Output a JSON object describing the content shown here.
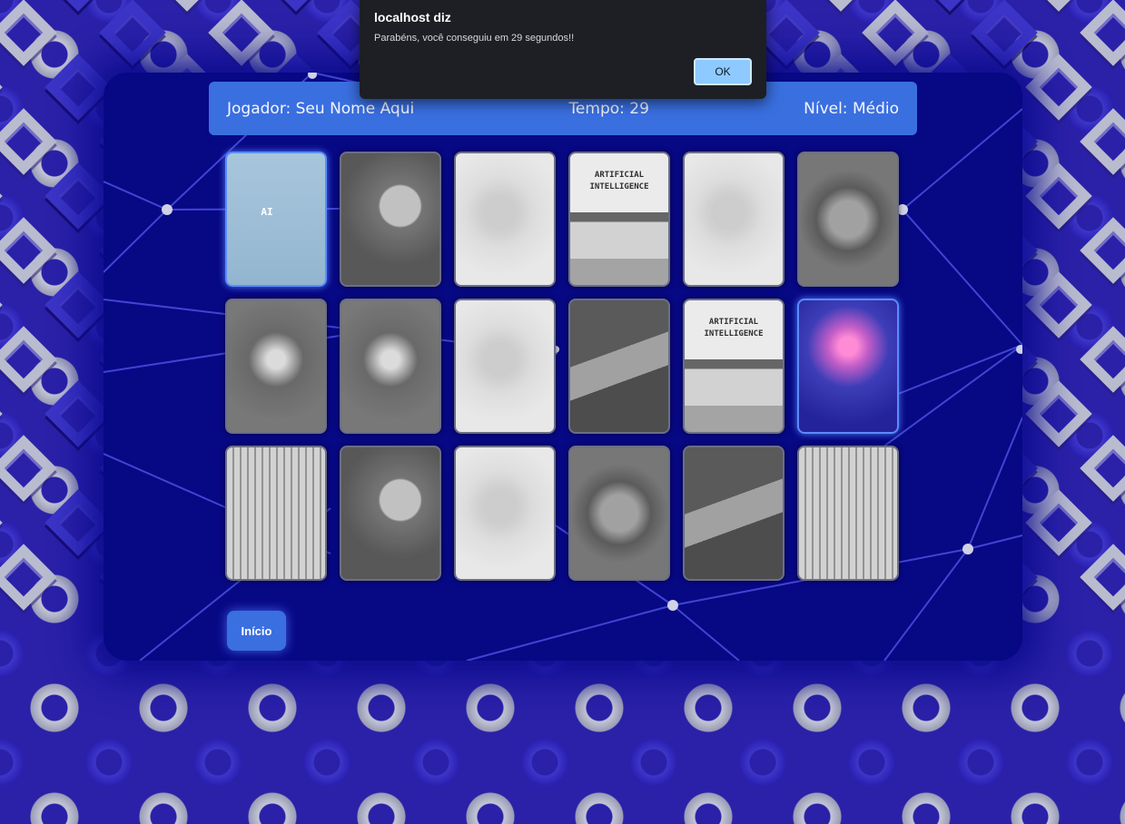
{
  "dialog": {
    "title": "localhost diz",
    "message": "Parabéns, você conseguiu em 29 segundos!!",
    "ok_label": "OK"
  },
  "header": {
    "player": "Jogador: Seu Nome Aqui",
    "time": "Tempo: 29",
    "level": "Nível: Médio"
  },
  "cards": [
    {
      "image": "ai-robot-hand-icon",
      "state": "revealed",
      "label": "AI"
    },
    {
      "image": "robot-head-icon",
      "state": "matched",
      "label": ""
    },
    {
      "image": "robot-hand-light-icon",
      "state": "matched",
      "label": ""
    },
    {
      "image": "ai-monitor-icon",
      "state": "matched",
      "label": "ARTIFICIAL\nINTELLIGENCE"
    },
    {
      "image": "robot-hand-light-icon",
      "state": "matched",
      "label": ""
    },
    {
      "image": "robot-eye-icon",
      "state": "matched",
      "label": ""
    },
    {
      "image": "circuit-city-icon",
      "state": "matched",
      "label": ""
    },
    {
      "image": "circuit-city-icon",
      "state": "matched",
      "label": ""
    },
    {
      "image": "robot-hand-light-icon",
      "state": "matched",
      "label": ""
    },
    {
      "image": "laptop-typing-icon",
      "state": "matched",
      "label": ""
    },
    {
      "image": "ai-monitor-icon",
      "state": "matched",
      "label": "ARTIFICIAL\nINTELLIGENCE"
    },
    {
      "image": "glowing-brain-hand-icon",
      "state": "revealed",
      "label": ""
    },
    {
      "image": "robot-piano-icon",
      "state": "matched",
      "label": ""
    },
    {
      "image": "robot-head-icon",
      "state": "matched",
      "label": ""
    },
    {
      "image": "robot-hand-light-icon",
      "state": "matched",
      "label": ""
    },
    {
      "image": "robot-eye-icon",
      "state": "matched",
      "label": ""
    },
    {
      "image": "laptop-typing-icon",
      "state": "matched",
      "label": ""
    },
    {
      "image": "robot-piano-icon",
      "state": "matched",
      "label": ""
    }
  ],
  "buttons": {
    "inicio_label": "Início"
  },
  "colors": {
    "board_bg": "#070884",
    "accent": "#3a6fe0",
    "dialog_bg": "#1d1f24",
    "ok_bg": "#8ecaff"
  }
}
